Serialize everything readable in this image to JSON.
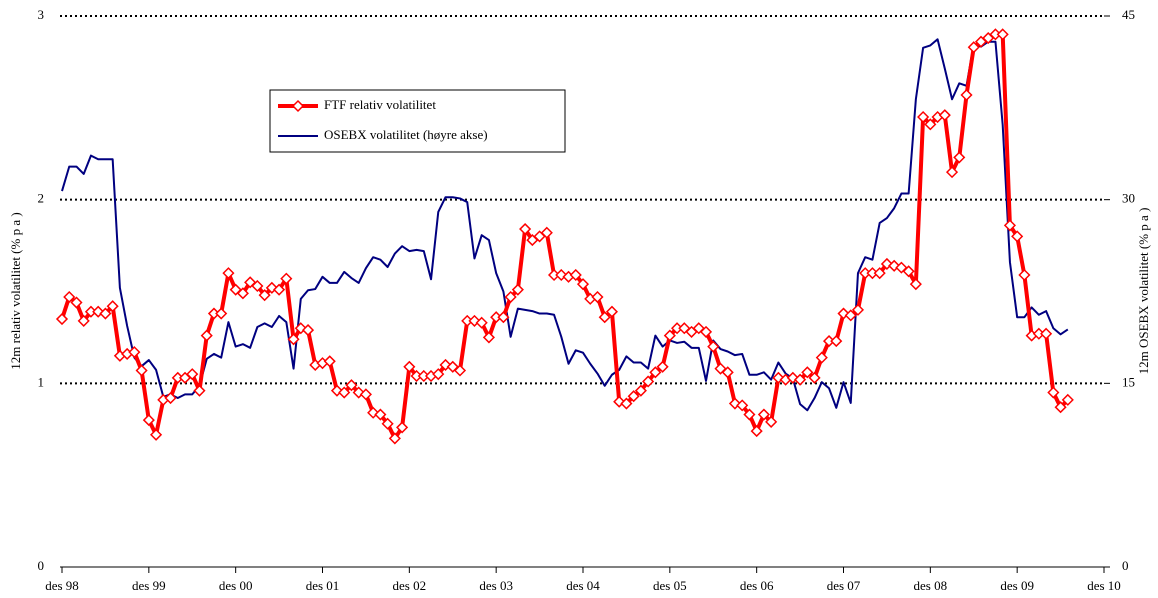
{
  "chart_data": {
    "type": "line",
    "ylabel": "12m relativ volatilitet (% p a )",
    "y2label": "12m OSEBX volatilitet (% p a )",
    "categories": [
      "des 98",
      null,
      null,
      null,
      null,
      null,
      null,
      null,
      null,
      null,
      null,
      null,
      "des 99",
      null,
      null,
      null,
      null,
      null,
      null,
      null,
      null,
      null,
      null,
      null,
      "des 00",
      null,
      null,
      null,
      null,
      null,
      null,
      null,
      null,
      null,
      null,
      null,
      "des 01",
      null,
      null,
      null,
      null,
      null,
      null,
      null,
      null,
      null,
      null,
      null,
      "des 02",
      null,
      null,
      null,
      null,
      null,
      null,
      null,
      null,
      null,
      null,
      null,
      "des 03",
      null,
      null,
      null,
      null,
      null,
      null,
      null,
      null,
      null,
      null,
      null,
      "des 04",
      null,
      null,
      null,
      null,
      null,
      null,
      null,
      null,
      null,
      null,
      null,
      "des 05",
      null,
      null,
      null,
      null,
      null,
      null,
      null,
      null,
      null,
      null,
      null,
      "des 06",
      null,
      null,
      null,
      null,
      null,
      null,
      null,
      null,
      null,
      null,
      null,
      "des 07",
      null,
      null,
      null,
      null,
      null,
      null,
      null,
      null,
      null,
      null,
      null,
      "des 08",
      null,
      null,
      null,
      null,
      null,
      null,
      null,
      null,
      null,
      null,
      null,
      "des 09",
      null,
      null,
      null,
      null,
      null,
      null,
      null,
      null,
      null,
      null,
      null,
      "des 10"
    ],
    "series": [
      {
        "name": "FTF relativ volatilitet",
        "color": "#ff0000",
        "marker": "diamond",
        "values": [
          1.35,
          1.47,
          1.44,
          1.34,
          1.39,
          1.39,
          1.38,
          1.42,
          1.15,
          1.16,
          1.17,
          1.07,
          0.8,
          0.72,
          0.91,
          0.92,
          1.03,
          1.03,
          1.05,
          0.96,
          1.26,
          1.38,
          1.38,
          1.6,
          1.51,
          1.49,
          1.55,
          1.53,
          1.48,
          1.52,
          1.51,
          1.57,
          1.24,
          1.3,
          1.29,
          1.1,
          1.11,
          1.12,
          0.96,
          0.95,
          0.99,
          0.95,
          0.94,
          0.84,
          0.83,
          0.78,
          0.7,
          0.76,
          1.09,
          1.04,
          1.04,
          1.04,
          1.05,
          1.1,
          1.09,
          1.07,
          1.34,
          1.34,
          1.33,
          1.25,
          1.36,
          1.36,
          1.47,
          1.51,
          1.84,
          1.78,
          1.8,
          1.82,
          1.59,
          1.59,
          1.58,
          1.59,
          1.54,
          1.46,
          1.47,
          1.36,
          1.39,
          0.9,
          0.89,
          0.93,
          0.96,
          1.01,
          1.06,
          1.09,
          1.26,
          1.3,
          1.3,
          1.28,
          1.3,
          1.28,
          1.2,
          1.08,
          1.06,
          0.89,
          0.88,
          0.83,
          0.74,
          0.83,
          0.79,
          1.03,
          1.02,
          1.03,
          1.02,
          1.06,
          1.03,
          1.14,
          1.23,
          1.23,
          1.38,
          1.37,
          1.4,
          1.6,
          1.6,
          1.6,
          1.65,
          1.64,
          1.63,
          1.61,
          1.54,
          2.45,
          2.41,
          2.45,
          2.46,
          2.15,
          2.23,
          2.57,
          2.83,
          2.86,
          2.88,
          2.9,
          2.9,
          1.86,
          1.8,
          1.59,
          1.26,
          1.27,
          1.27,
          0.95,
          0.87,
          0.91,
          null,
          null,
          null,
          null,
          null
        ]
      },
      {
        "name": "OSEBX volatilitet (høyre akse)",
        "color": "#000080",
        "axis": "y2",
        "values": [
          30.7,
          32.7,
          32.7,
          32.1,
          33.6,
          33.3,
          33.3,
          33.3,
          22.8,
          19.7,
          17.1,
          16.4,
          16.9,
          16.1,
          13.9,
          14.1,
          13.8,
          14.1,
          14.1,
          14.8,
          17.0,
          17.4,
          17.1,
          20.0,
          18.0,
          18.2,
          17.9,
          19.6,
          19.9,
          19.6,
          20.5,
          20.0,
          16.2,
          21.9,
          22.6,
          22.7,
          23.7,
          23.2,
          23.2,
          24.1,
          23.6,
          23.2,
          24.4,
          25.3,
          25.1,
          24.5,
          25.6,
          26.2,
          25.8,
          25.9,
          25.8,
          23.5,
          29.0,
          30.2,
          30.2,
          30.1,
          29.8,
          25.2,
          27.1,
          26.7,
          24.0,
          22.5,
          18.8,
          21.1,
          21.0,
          20.9,
          20.7,
          20.7,
          20.6,
          18.8,
          16.6,
          17.7,
          17.5,
          16.6,
          15.8,
          14.8,
          15.7,
          16.1,
          17.2,
          16.7,
          16.7,
          16.2,
          18.9,
          18.0,
          18.5,
          18.3,
          18.4,
          17.9,
          17.9,
          15.2,
          18.5,
          17.8,
          17.6,
          17.3,
          17.4,
          15.7,
          15.7,
          15.9,
          15.3,
          16.7,
          15.8,
          15.4,
          13.3,
          12.8,
          13.8,
          15.1,
          14.6,
          13.0,
          15.1,
          13.4,
          24.0,
          25.3,
          25.1,
          28.1,
          28.5,
          29.3,
          30.5,
          30.5,
          38.2,
          42.4,
          42.6,
          43.1,
          40.7,
          38.2,
          39.5,
          39.3,
          42.7,
          42.5,
          42.9,
          42.9,
          36.1,
          24.9,
          20.4,
          20.4,
          21.2,
          20.6,
          20.9,
          19.5,
          19.0,
          19.4,
          null,
          null,
          null,
          null,
          null
        ]
      }
    ],
    "ylim": [
      0,
      3
    ],
    "yticks": [
      0,
      1,
      2,
      3
    ],
    "y2lim": [
      0,
      45
    ],
    "y2ticks": [
      0,
      15,
      30,
      45
    ],
    "grid": true
  }
}
